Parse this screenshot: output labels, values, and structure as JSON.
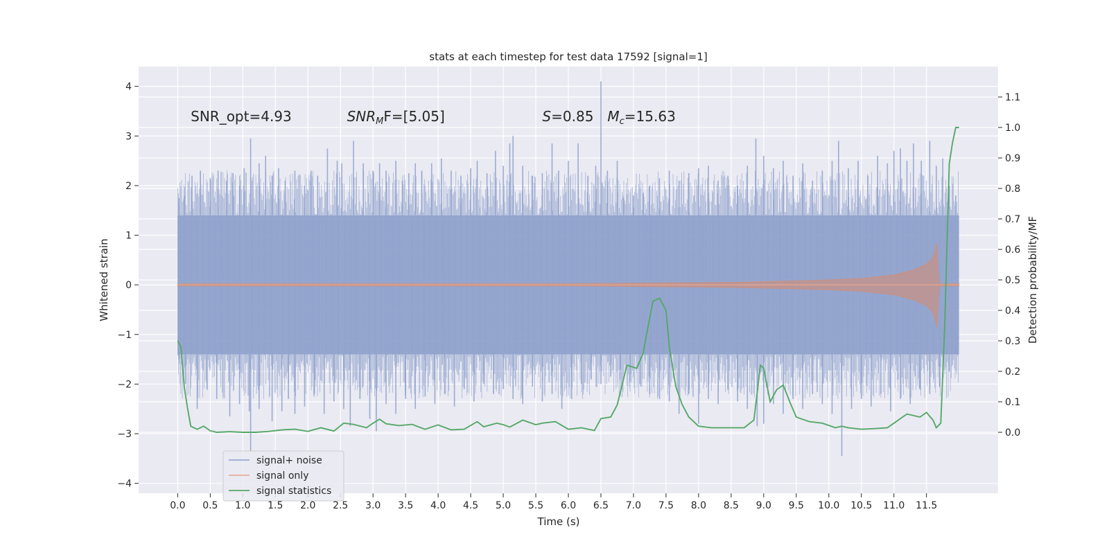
{
  "chart_data": {
    "type": "line",
    "title": "stats at each timestep for test data 17592 [signal=1]",
    "xlabel": "Time (s)",
    "ylabel": "Whitened strain",
    "ylabel_right": "Detection probability/MF",
    "xlim": [
      -0.6,
      12.6
    ],
    "ylim": [
      -4.2,
      4.4
    ],
    "ylim_right": [
      -0.2,
      1.2
    ],
    "x_ticks": [
      "0.0",
      "0.5",
      "1.0",
      "1.5",
      "2.0",
      "2.5",
      "3.0",
      "3.5",
      "4.0",
      "4.5",
      "5.0",
      "5.5",
      "6.0",
      "6.5",
      "7.0",
      "7.5",
      "8.0",
      "8.5",
      "9.0",
      "9.5",
      "10.0",
      "10.5",
      "11.0",
      "11.5"
    ],
    "y_ticks": [
      "4",
      "3",
      "2",
      "1",
      "0",
      "−1",
      "−2",
      "−3",
      "−4"
    ],
    "y_ticks_right": [
      "1.1",
      "1.0",
      "0.9",
      "0.8",
      "0.7",
      "0.6",
      "0.5",
      "0.4",
      "0.3",
      "0.2",
      "0.1",
      "0.0"
    ],
    "annotations": [
      {
        "text": "SNR_opt=4.93",
        "x": 0.2,
        "y": 3.3
      },
      {
        "text": "SNR",
        "sub": "M",
        "suffix": "F=[5.05]",
        "x": 2.6,
        "y": 3.3
      },
      {
        "text": "S",
        "suffix": "=0.85",
        "x": 5.6,
        "y": 3.3
      },
      {
        "text": "M",
        "sub": "c",
        "suffix": "=15.63",
        "x": 6.6,
        "y": 3.3
      }
    ],
    "legend": {
      "position": "lower-left",
      "entries": [
        "signal+ noise",
        "signal only",
        "signal statistics"
      ]
    },
    "series": [
      {
        "name": "signal+ noise",
        "axis": "left",
        "color": "#8da0cb",
        "opacity": 0.85,
        "t_range": [
          0.0,
          12.0
        ],
        "band": 1.4,
        "upper_spikes": [
          [
            0.02,
            1.75
          ],
          [
            0.1,
            1.8
          ],
          [
            0.22,
            2.2
          ],
          [
            0.35,
            2.3
          ],
          [
            0.5,
            2.15
          ],
          [
            0.62,
            2.3
          ],
          [
            0.75,
            2.1
          ],
          [
            0.85,
            2.25
          ],
          [
            0.95,
            2.0
          ],
          [
            1.02,
            2.35
          ],
          [
            1.12,
            2.95
          ],
          [
            1.25,
            2.45
          ],
          [
            1.35,
            2.6
          ],
          [
            1.45,
            2.2
          ],
          [
            1.55,
            2.35
          ],
          [
            1.65,
            2.1
          ],
          [
            1.8,
            2.3
          ],
          [
            1.95,
            2.0
          ],
          [
            2.05,
            2.3
          ],
          [
            2.15,
            2.2
          ],
          [
            2.3,
            2.75
          ],
          [
            2.45,
            2.5
          ],
          [
            2.52,
            2.45
          ],
          [
            2.7,
            2.9
          ],
          [
            2.85,
            2.45
          ],
          [
            3.0,
            2.3
          ],
          [
            3.1,
            2.45
          ],
          [
            3.2,
            2.3
          ],
          [
            3.35,
            2.5
          ],
          [
            3.45,
            2.1
          ],
          [
            3.55,
            2.25
          ],
          [
            3.65,
            2.45
          ],
          [
            3.75,
            2.3
          ],
          [
            3.9,
            2.45
          ],
          [
            4.05,
            2.55
          ],
          [
            4.2,
            2.3
          ],
          [
            4.35,
            2.2
          ],
          [
            4.5,
            2.35
          ],
          [
            4.6,
            2.5
          ],
          [
            4.75,
            2.25
          ],
          [
            4.88,
            2.7
          ],
          [
            5.0,
            2.4
          ],
          [
            5.1,
            2.85
          ],
          [
            5.15,
            3.0
          ],
          [
            5.3,
            2.4
          ],
          [
            5.45,
            2.2
          ],
          [
            5.6,
            2.25
          ],
          [
            5.75,
            2.85
          ],
          [
            5.85,
            2.3
          ],
          [
            6.0,
            2.5
          ],
          [
            6.15,
            2.85
          ],
          [
            6.3,
            2.2
          ],
          [
            6.42,
            2.4
          ],
          [
            6.5,
            4.1
          ],
          [
            6.6,
            2.3
          ],
          [
            6.75,
            2.5
          ],
          [
            6.85,
            1.75
          ],
          [
            7.0,
            1.8
          ],
          [
            7.15,
            1.85
          ],
          [
            7.25,
            2.0
          ],
          [
            7.4,
            2.15
          ],
          [
            7.55,
            2.3
          ],
          [
            7.7,
            2.1
          ],
          [
            7.85,
            2.25
          ],
          [
            8.0,
            2.35
          ],
          [
            8.15,
            2.4
          ],
          [
            8.3,
            2.1
          ],
          [
            8.45,
            2.2
          ],
          [
            8.6,
            2.0
          ],
          [
            8.75,
            2.4
          ],
          [
            8.88,
            2.95
          ],
          [
            9.0,
            2.6
          ],
          [
            9.15,
            2.35
          ],
          [
            9.3,
            2.5
          ],
          [
            9.45,
            2.2
          ],
          [
            9.6,
            2.45
          ],
          [
            9.75,
            2.1
          ],
          [
            9.9,
            2.3
          ],
          [
            10.05,
            2.5
          ],
          [
            10.15,
            2.9
          ],
          [
            10.3,
            2.35
          ],
          [
            10.45,
            2.5
          ],
          [
            10.6,
            2.2
          ],
          [
            10.75,
            2.6
          ],
          [
            10.9,
            2.45
          ],
          [
            11.0,
            2.7
          ],
          [
            11.1,
            2.75
          ],
          [
            11.2,
            2.5
          ],
          [
            11.3,
            2.85
          ],
          [
            11.42,
            2.5
          ],
          [
            11.55,
            2.9
          ],
          [
            11.65,
            2.4
          ],
          [
            11.75,
            2.55
          ],
          [
            11.85,
            2.0
          ],
          [
            11.95,
            1.8
          ]
        ],
        "lower_spikes": [
          [
            0.02,
            -1.5
          ],
          [
            0.12,
            -2.0
          ],
          [
            0.3,
            -2.5
          ],
          [
            0.45,
            -2.1
          ],
          [
            0.6,
            -2.3
          ],
          [
            0.8,
            -2.65
          ],
          [
            0.95,
            -2.4
          ],
          [
            1.1,
            -2.55
          ],
          [
            1.12,
            -3.35
          ],
          [
            1.25,
            -2.5
          ],
          [
            1.45,
            -2.75
          ],
          [
            1.6,
            -2.55
          ],
          [
            1.7,
            -2.3
          ],
          [
            1.8,
            -2.6
          ],
          [
            1.95,
            -2.45
          ],
          [
            2.1,
            -2.2
          ],
          [
            2.25,
            -2.6
          ],
          [
            2.4,
            -2.35
          ],
          [
            2.55,
            -2.5
          ],
          [
            2.65,
            -2.85
          ],
          [
            2.8,
            -2.3
          ],
          [
            2.95,
            -2.7
          ],
          [
            3.05,
            -2.95
          ],
          [
            3.2,
            -2.4
          ],
          [
            3.35,
            -2.6
          ],
          [
            3.5,
            -2.3
          ],
          [
            3.65,
            -2.5
          ],
          [
            3.8,
            -2.25
          ],
          [
            3.95,
            -2.4
          ],
          [
            4.1,
            -2.2
          ],
          [
            4.25,
            -2.45
          ],
          [
            4.4,
            -2.1
          ],
          [
            4.55,
            -2.35
          ],
          [
            4.7,
            -2.0
          ],
          [
            4.85,
            -2.2
          ],
          [
            5.0,
            -2.1
          ],
          [
            5.15,
            -2.3
          ],
          [
            5.3,
            -2.4
          ],
          [
            5.45,
            -2.05
          ],
          [
            5.6,
            -2.35
          ],
          [
            5.75,
            -2.2
          ],
          [
            5.9,
            -2.5
          ],
          [
            6.05,
            -2.3
          ],
          [
            6.2,
            -2.0
          ],
          [
            6.35,
            -1.9
          ],
          [
            6.5,
            -2.0
          ],
          [
            6.65,
            -1.85
          ],
          [
            6.8,
            -1.7
          ],
          [
            6.95,
            -1.95
          ],
          [
            7.1,
            -2.0
          ],
          [
            7.25,
            -2.2
          ],
          [
            7.4,
            -2.3
          ],
          [
            7.55,
            -2.35
          ],
          [
            7.7,
            -2.6
          ],
          [
            7.85,
            -2.2
          ],
          [
            8.0,
            -2.8
          ],
          [
            8.15,
            -2.3
          ],
          [
            8.3,
            -2.4
          ],
          [
            8.45,
            -2.1
          ],
          [
            8.6,
            -2.35
          ],
          [
            8.75,
            -2.5
          ],
          [
            8.9,
            -2.85
          ],
          [
            9.0,
            -2.8
          ],
          [
            9.15,
            -2.4
          ],
          [
            9.3,
            -2.6
          ],
          [
            9.45,
            -2.3
          ],
          [
            9.6,
            -2.5
          ],
          [
            9.75,
            -2.2
          ],
          [
            9.9,
            -2.4
          ],
          [
            10.05,
            -2.6
          ],
          [
            10.2,
            -3.45
          ],
          [
            10.35,
            -2.5
          ],
          [
            10.5,
            -2.3
          ],
          [
            10.65,
            -2.45
          ],
          [
            10.8,
            -2.2
          ],
          [
            10.95,
            -2.55
          ],
          [
            11.1,
            -2.3
          ],
          [
            11.25,
            -2.4
          ],
          [
            11.4,
            -2.1
          ],
          [
            11.55,
            -2.2
          ],
          [
            11.7,
            -2.05
          ],
          [
            11.85,
            -1.75
          ],
          [
            11.95,
            -1.3
          ]
        ]
      },
      {
        "name": "signal only",
        "axis": "left",
        "color": "#d98b6e",
        "opacity": 0.55,
        "envelope": [
          [
            0.0,
            0.02
          ],
          [
            6.0,
            0.02
          ],
          [
            7.5,
            0.04
          ],
          [
            8.5,
            0.05
          ],
          [
            9.5,
            0.08
          ],
          [
            10.0,
            0.1
          ],
          [
            10.5,
            0.13
          ],
          [
            11.0,
            0.2
          ],
          [
            11.3,
            0.3
          ],
          [
            11.5,
            0.42
          ],
          [
            11.6,
            0.55
          ],
          [
            11.66,
            0.85
          ],
          [
            11.68,
            0.3
          ],
          [
            11.7,
            0.02
          ],
          [
            12.0,
            0.02
          ]
        ]
      },
      {
        "name": "signal statistics",
        "axis": "right",
        "color": "#55a868",
        "x": [
          0.0,
          0.05,
          0.1,
          0.15,
          0.2,
          0.3,
          0.4,
          0.5,
          0.6,
          0.8,
          1.0,
          1.2,
          1.4,
          1.6,
          1.8,
          2.0,
          2.2,
          2.4,
          2.55,
          2.7,
          2.9,
          3.0,
          3.1,
          3.2,
          3.4,
          3.6,
          3.8,
          4.0,
          4.2,
          4.4,
          4.6,
          4.7,
          4.9,
          5.0,
          5.1,
          5.3,
          5.5,
          5.6,
          5.8,
          6.0,
          6.2,
          6.4,
          6.5,
          6.65,
          6.75,
          6.9,
          7.05,
          7.15,
          7.2,
          7.3,
          7.4,
          7.5,
          7.55,
          7.65,
          7.75,
          7.85,
          8.0,
          8.2,
          8.5,
          8.7,
          8.85,
          8.95,
          9.0,
          9.1,
          9.2,
          9.3,
          9.4,
          9.5,
          9.7,
          9.9,
          10.1,
          10.2,
          10.3,
          10.5,
          10.7,
          10.9,
          11.0,
          11.2,
          11.4,
          11.5,
          11.6,
          11.65,
          11.72,
          11.78,
          11.85,
          11.9,
          11.95,
          12.0
        ],
        "y": [
          0.3,
          0.28,
          0.15,
          0.08,
          0.02,
          0.01,
          0.02,
          0.005,
          0.0,
          0.002,
          0.0,
          0.0,
          0.003,
          0.008,
          0.01,
          0.003,
          0.015,
          0.004,
          0.03,
          0.026,
          0.015,
          0.03,
          0.043,
          0.028,
          0.022,
          0.026,
          0.01,
          0.024,
          0.008,
          0.01,
          0.035,
          0.018,
          0.03,
          0.025,
          0.017,
          0.04,
          0.025,
          0.03,
          0.035,
          0.01,
          0.015,
          0.006,
          0.045,
          0.05,
          0.09,
          0.22,
          0.21,
          0.26,
          0.32,
          0.43,
          0.44,
          0.4,
          0.28,
          0.15,
          0.09,
          0.05,
          0.02,
          0.015,
          0.015,
          0.015,
          0.04,
          0.22,
          0.21,
          0.1,
          0.14,
          0.155,
          0.1,
          0.05,
          0.035,
          0.03,
          0.015,
          0.02,
          0.015,
          0.01,
          0.012,
          0.015,
          0.03,
          0.06,
          0.05,
          0.065,
          0.04,
          0.015,
          0.03,
          0.35,
          0.88,
          0.95,
          1.0,
          1.0
        ]
      }
    ]
  }
}
